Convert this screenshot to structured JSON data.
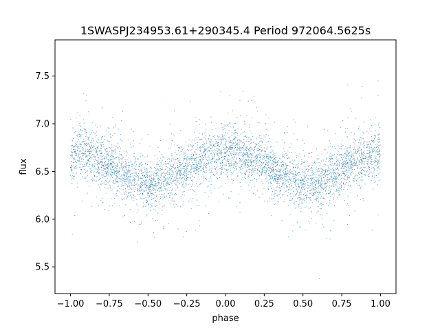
{
  "chart_data": {
    "type": "scatter",
    "title": "1SWASPJ234953.61+290345.4 Period 972064.5625s",
    "xlabel": "phase",
    "ylabel": "flux",
    "xlim": [
      -1.1,
      1.1
    ],
    "ylim": [
      5.22,
      7.88
    ],
    "xticks": [
      -1.0,
      -0.75,
      -0.5,
      -0.25,
      0.0,
      0.25,
      0.5,
      0.75,
      1.0
    ],
    "xtick_labels": [
      "−1.00",
      "−0.75",
      "−0.50",
      "−0.25",
      "0.00",
      "0.25",
      "0.50",
      "0.75",
      "1.00"
    ],
    "yticks": [
      5.5,
      6.0,
      6.5,
      7.0,
      7.5
    ],
    "ytick_labels": [
      "5.5",
      "6.0",
      "6.5",
      "7.0",
      "7.5"
    ],
    "grid": false,
    "marker_color": "#1f77b4",
    "series": [
      {
        "phase": [
          -1.0,
          -0.95,
          -0.9,
          -0.85,
          -0.8,
          -0.75,
          -0.7,
          -0.65,
          -0.6,
          -0.55,
          -0.5,
          -0.45,
          -0.4,
          -0.35,
          -0.3,
          -0.25,
          -0.2,
          -0.15,
          -0.1,
          -0.05,
          0.0,
          0.05,
          0.1,
          0.15,
          0.2,
          0.25,
          0.3,
          0.35,
          0.4,
          0.45,
          0.5,
          0.55,
          0.6,
          0.65,
          0.7,
          0.75,
          0.8,
          0.85,
          0.9,
          0.95,
          1.0
        ],
        "flux": [
          6.64,
          6.7,
          6.68,
          6.64,
          6.62,
          6.58,
          6.52,
          6.47,
          6.42,
          6.4,
          6.36,
          6.36,
          6.4,
          6.46,
          6.5,
          6.54,
          6.58,
          6.62,
          6.66,
          6.68,
          6.68,
          6.7,
          6.68,
          6.64,
          6.62,
          6.58,
          6.54,
          6.48,
          6.44,
          6.4,
          6.37,
          6.36,
          6.38,
          6.44,
          6.49,
          6.54,
          6.58,
          6.62,
          6.66,
          6.68,
          6.68
        ]
      }
    ]
  }
}
